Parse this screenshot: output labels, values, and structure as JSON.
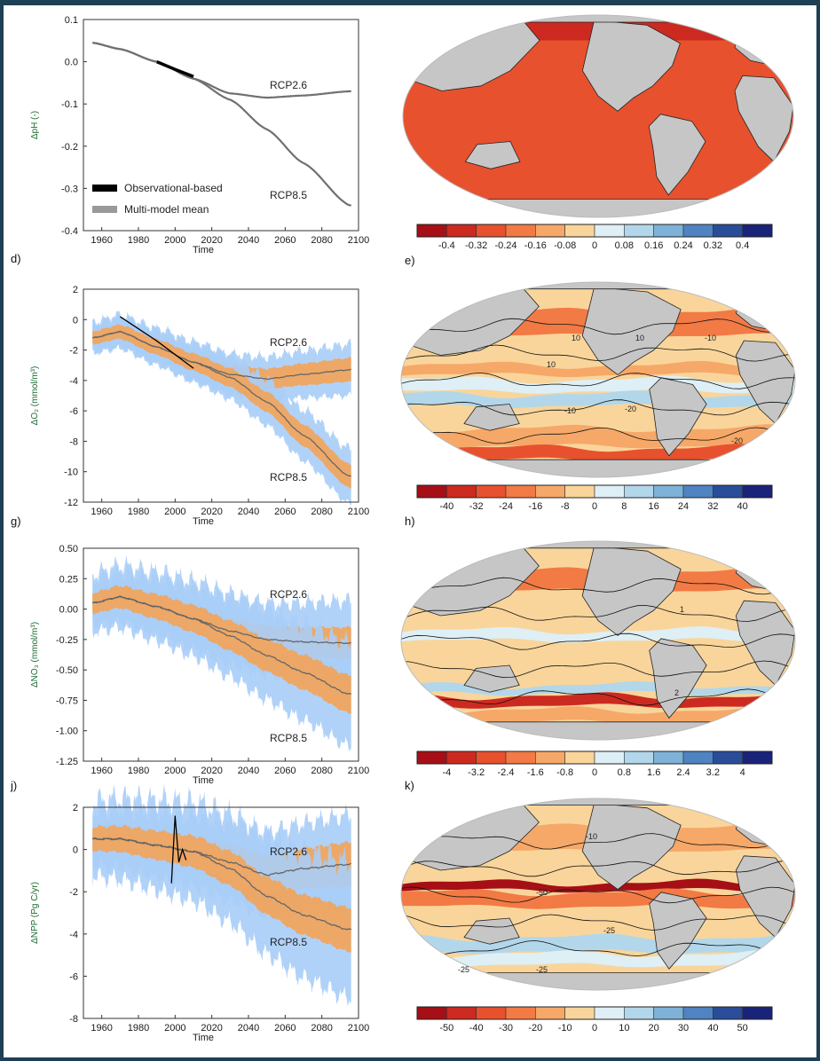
{
  "chart_data": [
    {
      "type": "line",
      "panel_label_below": "d)",
      "ylabel": "ΔpH (-)",
      "xlabel": "Time",
      "xlim": [
        1950,
        2100
      ],
      "ylim": [
        -0.4,
        0.1
      ],
      "xticks": [
        "1960",
        "1980",
        "2000",
        "2020",
        "2040",
        "2060",
        "2080",
        "2100"
      ],
      "yticks": [
        "0.1",
        "0.0",
        "-0.1",
        "-0.2",
        "-0.3",
        "-0.4"
      ],
      "annotations": [
        "RCP2.6",
        "RCP8.5"
      ],
      "legend": [
        "Observational-based",
        "Multi-model mean"
      ],
      "series": [
        {
          "name": "RCP2.6",
          "x": [
            1955,
            1970,
            1990,
            2010,
            2030,
            2050,
            2070,
            2095
          ],
          "y": [
            0.045,
            0.03,
            0.0,
            -0.04,
            -0.075,
            -0.085,
            -0.08,
            -0.07
          ]
        },
        {
          "name": "RCP8.5",
          "x": [
            1955,
            1970,
            1990,
            2010,
            2030,
            2050,
            2070,
            2095
          ],
          "y": [
            0.045,
            0.03,
            0.0,
            -0.04,
            -0.09,
            -0.16,
            -0.24,
            -0.34
          ]
        },
        {
          "name": "Observational-based",
          "x": [
            1990,
            2000,
            2010
          ],
          "y": [
            0.0,
            -0.018,
            -0.035
          ]
        }
      ]
    },
    {
      "type": "line",
      "panel_label_above": "d)",
      "panel_label_below": "g)",
      "ylabel": "ΔO₂ (mmol/m³)",
      "xlabel": "Time",
      "xlim": [
        1950,
        2100
      ],
      "ylim": [
        -12,
        2
      ],
      "xticks": [
        "1960",
        "1980",
        "2000",
        "2020",
        "2040",
        "2060",
        "2080",
        "2100"
      ],
      "yticks": [
        "2",
        "0",
        "-2",
        "-4",
        "-6",
        "-8",
        "-10",
        "-12"
      ],
      "annotations": [
        "RCP2.6",
        "RCP8.5"
      ],
      "series": [
        {
          "name": "RCP2.6",
          "x": [
            1955,
            1970,
            1990,
            2010,
            2030,
            2050,
            2070,
            2095
          ],
          "y": [
            -1.2,
            -0.8,
            -1.8,
            -2.8,
            -3.6,
            -3.9,
            -3.6,
            -3.3
          ],
          "inner_halfwidth": 0.6,
          "outer_halfwidth": 1.3
        },
        {
          "name": "RCP8.5",
          "x": [
            1955,
            1970,
            1990,
            2010,
            2030,
            2050,
            2070,
            2095
          ],
          "y": [
            -1.2,
            -0.8,
            -1.8,
            -2.8,
            -3.8,
            -5.4,
            -7.6,
            -10.3
          ],
          "inner_halfwidth": 0.6,
          "outer_halfwidth": 1.4
        },
        {
          "name": "Observational-based",
          "x": [
            1970,
            1990,
            2010
          ],
          "y": [
            0.2,
            -1.4,
            -3.2
          ]
        }
      ]
    },
    {
      "type": "line",
      "panel_label_below": "j)",
      "ylabel": "ΔNO₃ (mmol/m³)",
      "xlabel": "Time",
      "xlim": [
        1950,
        2100
      ],
      "ylim": [
        -1.25,
        0.5
      ],
      "xticks": [
        "1960",
        "1980",
        "2000",
        "2020",
        "2040",
        "2060",
        "2080",
        "2100"
      ],
      "yticks": [
        "0.50",
        "0.25",
        "0.00",
        "-0.25",
        "-0.50",
        "-0.75",
        "-1.00",
        "-1.25"
      ],
      "annotations": [
        "RCP2.6",
        "RCP8.5"
      ],
      "series": [
        {
          "name": "RCP2.6",
          "x": [
            1955,
            1970,
            1990,
            2010,
            2030,
            2050,
            2070,
            2095
          ],
          "y": [
            0.05,
            0.1,
            0.02,
            -0.08,
            -0.18,
            -0.25,
            -0.27,
            -0.28
          ],
          "inner_halfwidth": 0.1,
          "outer_halfwidth": 0.27
        },
        {
          "name": "RCP8.5",
          "x": [
            1955,
            1970,
            1990,
            2010,
            2030,
            2050,
            2070,
            2095
          ],
          "y": [
            0.05,
            0.1,
            0.02,
            -0.08,
            -0.22,
            -0.38,
            -0.52,
            -0.7
          ],
          "inner_halfwidth": 0.12,
          "outer_halfwidth": 0.33
        }
      ]
    },
    {
      "type": "line",
      "ylabel": "ΔNPP (Pg C/yr)",
      "xlabel": "Time",
      "xlim": [
        1950,
        2100
      ],
      "ylim": [
        -8,
        2
      ],
      "xticks": [
        "1960",
        "1980",
        "2000",
        "2020",
        "2040",
        "2060",
        "2080",
        "2100"
      ],
      "yticks": [
        "2",
        "0",
        "-2",
        "-4",
        "-6",
        "-8"
      ],
      "annotations": [
        "RCP2.6",
        "RCP8.5"
      ],
      "series": [
        {
          "name": "RCP2.6",
          "x": [
            1955,
            1970,
            1990,
            2010,
            2030,
            2050,
            2070,
            2095
          ],
          "y": [
            0.5,
            0.5,
            0.2,
            -0.1,
            -0.6,
            -1.2,
            -0.9,
            -0.7
          ],
          "inner_halfwidth": 0.8,
          "outer_halfwidth": 1.8
        },
        {
          "name": "RCP8.5",
          "x": [
            1955,
            1970,
            1990,
            2010,
            2030,
            2050,
            2070,
            2095
          ],
          "y": [
            0.5,
            0.5,
            0.2,
            -0.1,
            -0.9,
            -2.2,
            -3.1,
            -3.8
          ],
          "inner_halfwidth": 0.8,
          "outer_halfwidth": 2.5
        },
        {
          "name": "Observational-based",
          "x": [
            1998,
            2000,
            2002,
            2004,
            2006
          ],
          "y": [
            -1.6,
            1.6,
            -0.6,
            0.0,
            -0.5
          ]
        }
      ]
    },
    {
      "type": "heatmap",
      "panel_label_below": "e)",
      "colorbar_ticks": [
        "-0.4",
        "-0.32",
        "-0.24",
        "-0.16",
        "-0.08",
        "0",
        "0.08",
        "0.16",
        "0.24",
        "0.32",
        "0.4"
      ]
    },
    {
      "type": "heatmap",
      "panel_label_below": "h)",
      "colorbar_ticks": [
        "-40",
        "-32",
        "-24",
        "-16",
        "-8",
        "0",
        "8",
        "16",
        "24",
        "32",
        "40"
      ],
      "contour_labels": [
        "10",
        "10",
        "10",
        "-10",
        "-20",
        "-10",
        "-20"
      ]
    },
    {
      "type": "heatmap",
      "panel_label_below": "k)",
      "colorbar_ticks": [
        "-4",
        "-3.2",
        "-2.4",
        "-1.6",
        "-0.8",
        "0",
        "0.8",
        "1.6",
        "2.4",
        "3.2",
        "4"
      ],
      "contour_labels": [
        "1",
        "2"
      ]
    },
    {
      "type": "heatmap",
      "colorbar_ticks": [
        "-50",
        "-40",
        "-30",
        "-20",
        "-10",
        "0",
        "10",
        "20",
        "30",
        "40",
        "50"
      ],
      "contour_labels": [
        "-10",
        "-50",
        "-25",
        "-25",
        "-25"
      ]
    }
  ],
  "colors": {
    "band_outer": "#a9cdf7",
    "band_inner": "#f2a45a",
    "line": "#666666",
    "obs": "#000000",
    "land": "#c6c6c6",
    "colorbar": [
      "#a50f15",
      "#cc2a20",
      "#e8512e",
      "#f27a45",
      "#f6a868",
      "#f9d59b",
      "#deeff5",
      "#b3d7ea",
      "#7eb2d8",
      "#4f83c2",
      "#2a4d9a",
      "#1a237a"
    ]
  }
}
